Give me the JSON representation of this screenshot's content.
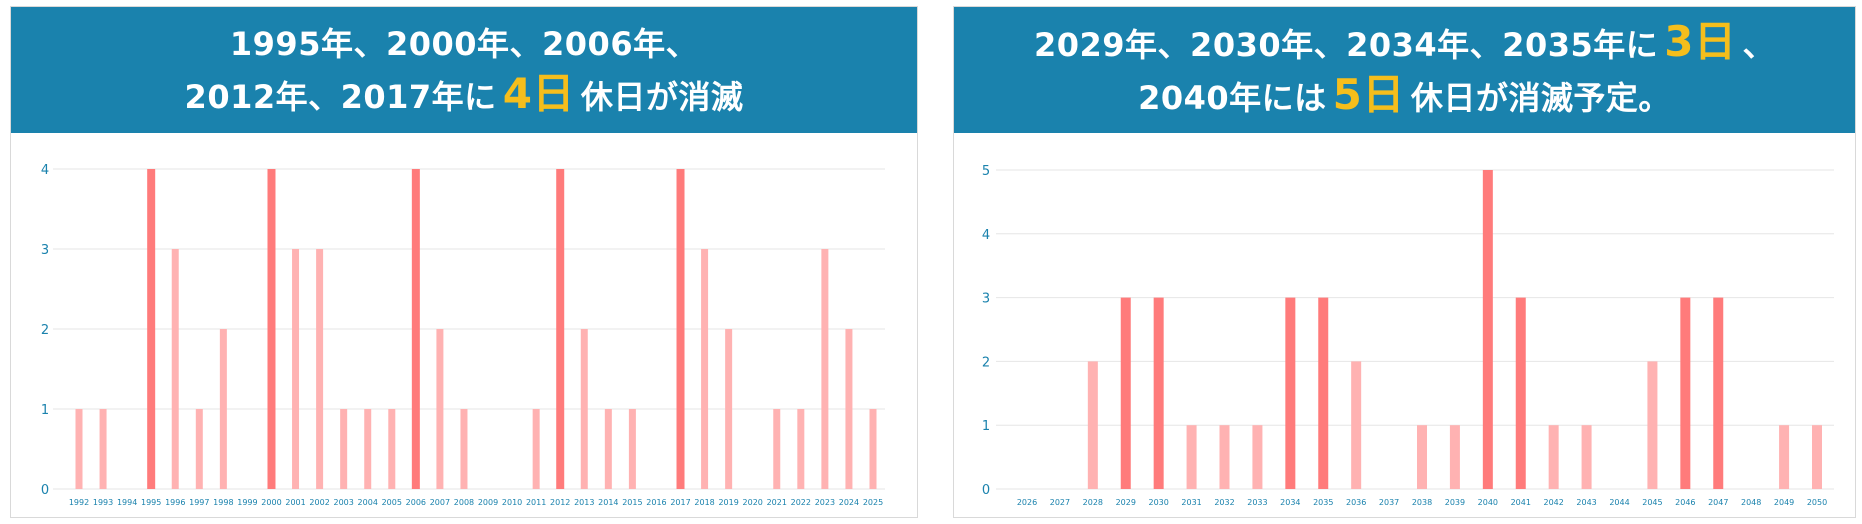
{
  "colors": {
    "header_bg": "#1a82ad",
    "highlight": "#f5be1c",
    "bar_light": "#ffb2b2",
    "bar_dark": "#ff7b7b",
    "axis_label": "#1a82ad",
    "grid": "#e6e6e6"
  },
  "left": {
    "line1": "1995年、2000年、2006年、",
    "line2_pre": "2012年、2017年に",
    "line2_num": "4日",
    "line2_post": "休日が消滅"
  },
  "right": {
    "line1_pre": "2029年、2030年、2034年、2035年に",
    "line1_num": "3日",
    "line1_post": "、",
    "line2_pre": "2040年には",
    "line2_num": "5日",
    "line2_post": "休日が消滅予定。"
  },
  "chart_data": [
    {
      "type": "bar",
      "title": "1995年、2000年、2006年、2012年、2017年に 4日 休日が消滅",
      "categories": [
        "1992",
        "1993",
        "1994",
        "1995",
        "1996",
        "1997",
        "1998",
        "1999",
        "2000",
        "2001",
        "2002",
        "2003",
        "2004",
        "2005",
        "2006",
        "2007",
        "2008",
        "2009",
        "2010",
        "2011",
        "2012",
        "2013",
        "2014",
        "2015",
        "2016",
        "2017",
        "2018",
        "2019",
        "2020",
        "2021",
        "2022",
        "2023",
        "2024",
        "2025"
      ],
      "values": [
        1,
        1,
        0,
        4,
        3,
        1,
        2,
        0,
        4,
        3,
        3,
        1,
        1,
        1,
        4,
        2,
        1,
        0,
        0,
        1,
        4,
        2,
        1,
        1,
        0,
        4,
        3,
        2,
        0,
        1,
        1,
        3,
        2,
        1
      ],
      "ylim": [
        0,
        4
      ],
      "yticks": [
        0,
        1,
        2,
        3,
        4
      ],
      "grid": true,
      "highlight_rule": "value = 4 drawn in darker red"
    },
    {
      "type": "bar",
      "title": "2029年、2030年、2034年、2035年に 3日、2040年には 5日 休日が消滅予定。",
      "categories": [
        "2026",
        "2027",
        "2028",
        "2029",
        "2030",
        "2031",
        "2032",
        "2033",
        "2034",
        "2035",
        "2036",
        "2037",
        "2038",
        "2039",
        "2040",
        "2041",
        "2042",
        "2043",
        "2044",
        "2045",
        "2046",
        "2047",
        "2048",
        "2049",
        "2050"
      ],
      "values": [
        0,
        0,
        2,
        3,
        3,
        1,
        1,
        1,
        3,
        3,
        2,
        0,
        1,
        1,
        5,
        3,
        1,
        1,
        0,
        2,
        3,
        3,
        0,
        1,
        1
      ],
      "ylim": [
        0,
        5
      ],
      "yticks": [
        0,
        1,
        2,
        3,
        4,
        5
      ],
      "grid": true,
      "highlight_rule": "value >= 3 drawn in darker red"
    }
  ]
}
